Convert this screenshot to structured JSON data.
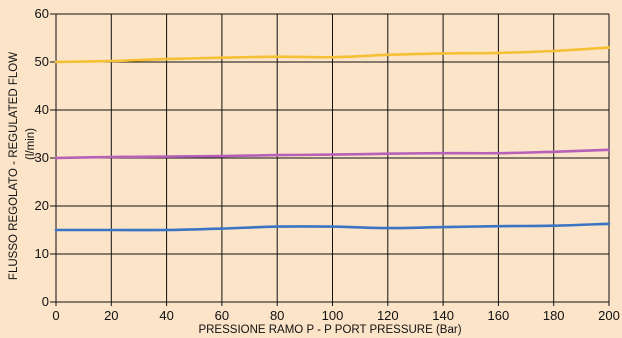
{
  "chart_data": {
    "type": "line",
    "xlabel": "PRESSIONE RAMO P - P PORT PRESSURE (Bar)",
    "ylabel": "FLUSSO REGOLATO - REGULATED FLOW",
    "yunit": "(l/min)",
    "xlim": [
      0,
      200
    ],
    "ylim": [
      0,
      60
    ],
    "xticks": [
      0,
      20,
      40,
      60,
      80,
      100,
      120,
      140,
      160,
      180,
      200
    ],
    "yticks": [
      0,
      10,
      20,
      30,
      40,
      50,
      60
    ],
    "grid": true,
    "colors": {
      "background": "#fbe4c8",
      "grid": "#111111"
    },
    "series": [
      {
        "color": "#f5c033",
        "x": [
          0,
          20,
          40,
          60,
          80,
          100,
          120,
          140,
          160,
          180,
          200
        ],
        "y": [
          50.0,
          50.2,
          50.6,
          50.9,
          51.1,
          51.0,
          51.5,
          51.8,
          51.9,
          52.3,
          53.0
        ]
      },
      {
        "color": "#b760b8",
        "x": [
          0,
          20,
          40,
          60,
          80,
          100,
          120,
          140,
          160,
          180,
          200
        ],
        "y": [
          30.0,
          30.2,
          30.3,
          30.4,
          30.6,
          30.7,
          30.9,
          31.0,
          31.0,
          31.3,
          31.7
        ]
      },
      {
        "color": "#3a74c4",
        "x": [
          0,
          20,
          40,
          60,
          80,
          100,
          120,
          140,
          160,
          180,
          200
        ],
        "y": [
          15.0,
          15.0,
          15.0,
          15.3,
          15.7,
          15.7,
          15.4,
          15.6,
          15.8,
          15.9,
          16.3
        ]
      }
    ]
  }
}
